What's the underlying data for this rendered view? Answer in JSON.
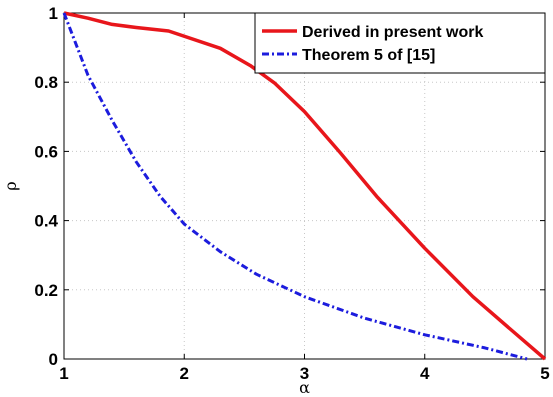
{
  "chart_data": {
    "type": "line",
    "xlabel": "α",
    "ylabel": "ρ",
    "xlim": [
      1,
      5
    ],
    "ylim": [
      0,
      1
    ],
    "x_ticks": [
      "1",
      "2",
      "3",
      "4",
      "5"
    ],
    "y_ticks": [
      "0",
      "0.2",
      "0.4",
      "0.6",
      "0.8",
      "1"
    ],
    "x_tick_values": [
      1,
      2,
      3,
      4,
      5
    ],
    "y_tick_values": [
      0,
      0.2,
      0.4,
      0.6,
      0.8,
      1
    ],
    "grid": true,
    "legend_position": "top-right",
    "series": [
      {
        "name": "Derived in present work",
        "color": "#e8161b",
        "style": "solid",
        "x": [
          1,
          1.2,
          1.4,
          1.6,
          1.87,
          2.3,
          2.55,
          2.75,
          3.0,
          3.3,
          3.6,
          4.0,
          4.4,
          4.7,
          5.0
        ],
        "y": [
          1,
          0.985,
          0.967,
          0.958,
          0.948,
          0.898,
          0.848,
          0.798,
          0.715,
          0.595,
          0.47,
          0.32,
          0.18,
          0.09,
          0.0
        ]
      },
      {
        "name": "Theorem 5 of [15]",
        "color": "#1c1cdd",
        "style": "dashdot",
        "x": [
          1,
          1.2,
          1.4,
          1.6,
          1.8,
          2.0,
          2.3,
          2.6,
          3.0,
          3.5,
          4.0,
          4.5,
          4.85
        ],
        "y": [
          1,
          0.82,
          0.69,
          0.57,
          0.47,
          0.39,
          0.31,
          0.245,
          0.18,
          0.118,
          0.07,
          0.032,
          0.0
        ]
      }
    ]
  }
}
